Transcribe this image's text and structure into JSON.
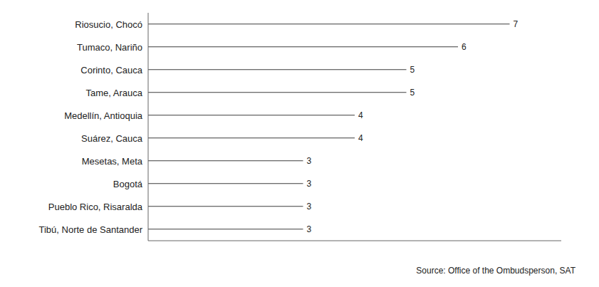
{
  "chart_data": {
    "type": "bar",
    "orientation": "horizontal",
    "categories": [
      "Tibú, Norte de Santander",
      "Pueblo Rico, Risaralda",
      "Bogotá",
      "Mesetas, Meta",
      "Suárez, Cauca",
      "Medellín, Antioquia",
      "Tame, Arauca",
      "Corinto, Cauca",
      "Tumaco, Nariño",
      "Riosucio, Chocó"
    ],
    "values": [
      3,
      3,
      3,
      3,
      4,
      4,
      5,
      5,
      6,
      7
    ],
    "color": "#3d3d3d",
    "xlim": [
      0,
      8
    ],
    "data_labels": true,
    "tick_labels": "y",
    "grid": false,
    "annotations": [
      "Source: Office of the Ombudsperson, SAT"
    ]
  }
}
